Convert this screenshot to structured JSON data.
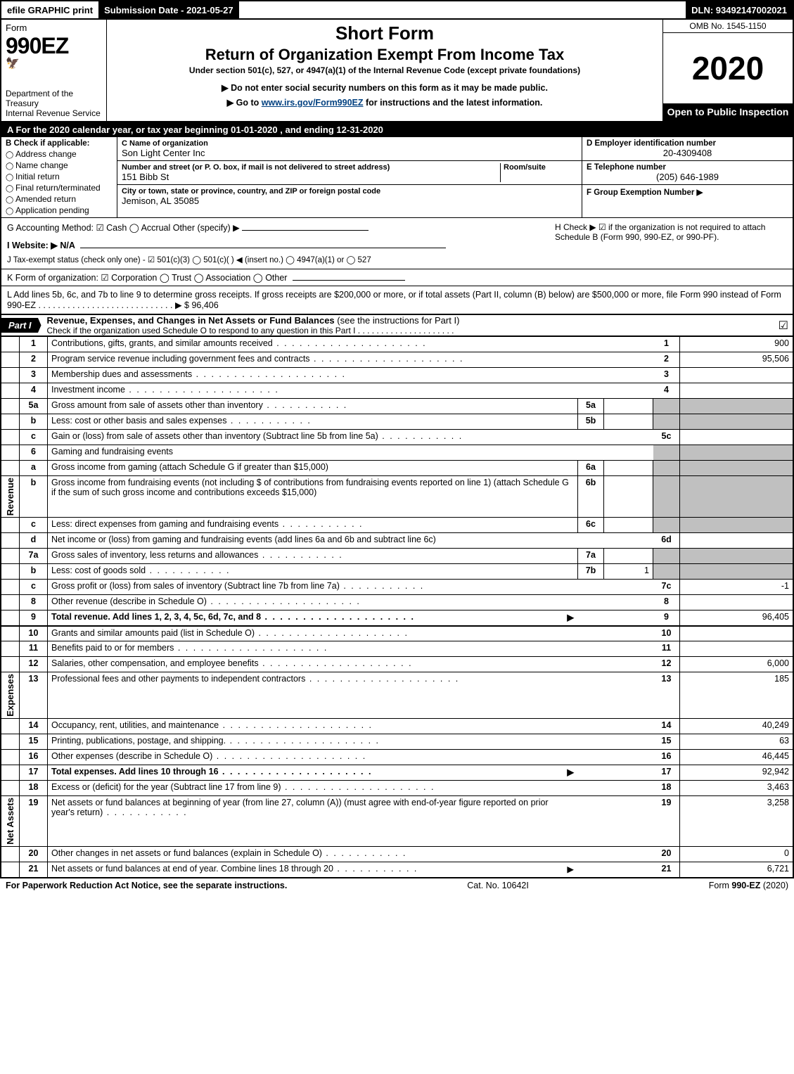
{
  "topbar": {
    "efile": "efile GRAPHIC print",
    "submission": "Submission Date - 2021-05-27",
    "dln": "DLN: 93492147002021"
  },
  "header": {
    "form_word": "Form",
    "form_num": "990EZ",
    "dept": "Department of the Treasury",
    "irs": "Internal Revenue Service",
    "short": "Short Form",
    "return": "Return of Organization Exempt From Income Tax",
    "under": "Under section 501(c), 527, or 4947(a)(1) of the Internal Revenue Code (except private foundations)",
    "donot": "▶ Do not enter social security numbers on this form as it may be made public.",
    "goto_pre": "▶ Go to ",
    "goto_link": "www.irs.gov/Form990EZ",
    "goto_post": " for instructions and the latest information.",
    "omb": "OMB No. 1545-1150",
    "year": "2020",
    "open": "Open to Public Inspection"
  },
  "sectionA": "A For the 2020 calendar year, or tax year beginning 01-01-2020 , and ending 12-31-2020",
  "sectionB": {
    "hdr": "B Check if applicable:",
    "items": [
      "Address change",
      "Name change",
      "Initial return",
      "Final return/terminated",
      "Amended return",
      "Application pending"
    ]
  },
  "sectionC": {
    "name_lbl": "C Name of organization",
    "name_val": "Son Light Center Inc",
    "addr_lbl": "Number and street (or P. O. box, if mail is not delivered to street address)",
    "room_lbl": "Room/suite",
    "addr_val": "151 Bibb St",
    "city_lbl": "City or town, state or province, country, and ZIP or foreign postal code",
    "city_val": "Jemison, AL  35085"
  },
  "sectionD": {
    "lbl": "D Employer identification number",
    "val": "20-4309408"
  },
  "sectionE": {
    "lbl": "E Telephone number",
    "val": "(205) 646-1989"
  },
  "sectionF": {
    "lbl": "F Group Exemption Number   ▶",
    "val": ""
  },
  "sectionG": "G Accounting Method:   ☑ Cash  ◯ Accrual   Other (specify) ▶ ",
  "sectionH": "H  Check ▶  ☑  if the organization is not required to attach Schedule B (Form 990, 990-EZ, or 990-PF).",
  "sectionI": "I Website: ▶ N/A",
  "sectionJ": "J Tax-exempt status (check only one) ‑  ☑ 501(c)(3)  ◯ 501(c)(  ) ◀ (insert no.)  ◯ 4947(a)(1) or  ◯ 527",
  "sectionK": "K Form of organization:   ☑ Corporation   ◯ Trust   ◯ Association   ◯ Other",
  "sectionL": {
    "text": "L Add lines 5b, 6c, and 7b to line 9 to determine gross receipts. If gross receipts are $200,000 or more, or if total assets (Part II, column (B) below) are $500,000 or more, file Form 990 instead of Form 990-EZ  .  .  .  .  .  .  .  .  .  .  .  .  .  .  .  .  .  .  .  .  .  .  .  .  .  .  .  .  ▶ $ ",
    "val": "96,406"
  },
  "part1": {
    "tag": "Part I",
    "title": "Revenue, Expenses, and Changes in Net Assets or Fund Balances ",
    "sub": "(see the instructions for Part I)",
    "check_line": "Check if the organization used Schedule O to respond to any question in this Part I  .  .  .  .  .  .  .  .  .  .  .  .  .  .  .  .  .  .  .  .  ."
  },
  "side_labels": {
    "revenue": "Revenue",
    "expenses": "Expenses",
    "netassets": "Net Assets"
  },
  "rows": [
    {
      "side": "rev",
      "n": "1",
      "d": "Contributions, gifts, grants, and similar amounts received",
      "sn": "",
      "sv": "",
      "rn": "1",
      "rv": "900",
      "dot": "long"
    },
    {
      "side": "rev",
      "n": "2",
      "d": "Program service revenue including government fees and contracts",
      "sn": "",
      "sv": "",
      "rn": "2",
      "rv": "95,506",
      "dot": "long"
    },
    {
      "side": "rev",
      "n": "3",
      "d": "Membership dues and assessments",
      "sn": "",
      "sv": "",
      "rn": "3",
      "rv": "",
      "dot": "long"
    },
    {
      "side": "rev",
      "n": "4",
      "d": "Investment income",
      "sn": "",
      "sv": "",
      "rn": "4",
      "rv": "",
      "dot": "long"
    },
    {
      "side": "rev",
      "n": "5a",
      "d": "Gross amount from sale of assets other than inventory",
      "sn": "5a",
      "sv": "",
      "rn": "",
      "rv": "",
      "gray": true,
      "dot": "short"
    },
    {
      "side": "rev",
      "n": "b",
      "d": "Less: cost or other basis and sales expenses",
      "sn": "5b",
      "sv": "",
      "rn": "",
      "rv": "",
      "gray": true,
      "dot": "short"
    },
    {
      "side": "rev",
      "n": "c",
      "d": "Gain or (loss) from sale of assets other than inventory (Subtract line 5b from line 5a)",
      "sn": "",
      "sv": "",
      "rn": "5c",
      "rv": "",
      "dot": "short"
    },
    {
      "side": "rev",
      "n": "6",
      "d": "Gaming and fundraising events",
      "sn": "",
      "sv": "",
      "rn": "",
      "rv": "",
      "gray": true,
      "nodot": true
    },
    {
      "side": "rev",
      "n": "a",
      "d": "Gross income from gaming (attach Schedule G if greater than $15,000)",
      "sn": "6a",
      "sv": "",
      "rn": "",
      "rv": "",
      "gray": true,
      "nodot": true
    },
    {
      "side": "rev",
      "n": "b",
      "d": "Gross income from fundraising events (not including $              of contributions from fundraising events reported on line 1) (attach Schedule G if the sum of such gross income and contributions exceeds $15,000)",
      "sn": "6b",
      "sv": "",
      "rn": "",
      "rv": "",
      "gray": true,
      "nodot": true,
      "tall": true
    },
    {
      "side": "rev",
      "n": "c",
      "d": "Less: direct expenses from gaming and fundraising events",
      "sn": "6c",
      "sv": "",
      "rn": "",
      "rv": "",
      "gray": true,
      "dot": "short"
    },
    {
      "side": "rev",
      "n": "d",
      "d": "Net income or (loss) from gaming and fundraising events (add lines 6a and 6b and subtract line 6c)",
      "sn": "",
      "sv": "",
      "rn": "6d",
      "rv": "",
      "nodot": true
    },
    {
      "side": "rev",
      "n": "7a",
      "d": "Gross sales of inventory, less returns and allowances",
      "sn": "7a",
      "sv": "",
      "rn": "",
      "rv": "",
      "gray": true,
      "dot": "short"
    },
    {
      "side": "rev",
      "n": "b",
      "d": "Less: cost of goods sold",
      "sn": "7b",
      "sv": "1",
      "rn": "",
      "rv": "",
      "gray": true,
      "dot": "short"
    },
    {
      "side": "rev",
      "n": "c",
      "d": "Gross profit or (loss) from sales of inventory (Subtract line 7b from line 7a)",
      "sn": "",
      "sv": "",
      "rn": "7c",
      "rv": "-1",
      "dot": "short"
    },
    {
      "side": "rev",
      "n": "8",
      "d": "Other revenue (describe in Schedule O)",
      "sn": "",
      "sv": "",
      "rn": "8",
      "rv": "",
      "dot": "long"
    },
    {
      "side": "rev",
      "n": "9",
      "d": "Total revenue. Add lines 1, 2, 3, 4, 5c, 6d, 7c, and 8",
      "sn": "",
      "sv": "",
      "rn": "9",
      "rv": "96,405",
      "arrow": true,
      "bold": true,
      "dot": "long"
    },
    {
      "side": "exp",
      "n": "10",
      "d": "Grants and similar amounts paid (list in Schedule O)",
      "sn": "",
      "sv": "",
      "rn": "10",
      "rv": "",
      "dot": "long",
      "gap": true
    },
    {
      "side": "exp",
      "n": "11",
      "d": "Benefits paid to or for members",
      "sn": "",
      "sv": "",
      "rn": "11",
      "rv": "",
      "dot": "long"
    },
    {
      "side": "exp",
      "n": "12",
      "d": "Salaries, other compensation, and employee benefits",
      "sn": "",
      "sv": "",
      "rn": "12",
      "rv": "6,000",
      "dot": "long"
    },
    {
      "side": "exp",
      "n": "13",
      "d": "Professional fees and other payments to independent contractors",
      "sn": "",
      "sv": "",
      "rn": "13",
      "rv": "185",
      "dot": "long"
    },
    {
      "side": "exp",
      "n": "14",
      "d": "Occupancy, rent, utilities, and maintenance",
      "sn": "",
      "sv": "",
      "rn": "14",
      "rv": "40,249",
      "dot": "long"
    },
    {
      "side": "exp",
      "n": "15",
      "d": "Printing, publications, postage, and shipping.",
      "sn": "",
      "sv": "",
      "rn": "15",
      "rv": "63",
      "dot": "long"
    },
    {
      "side": "exp",
      "n": "16",
      "d": "Other expenses (describe in Schedule O)",
      "sn": "",
      "sv": "",
      "rn": "16",
      "rv": "46,445",
      "dot": "long"
    },
    {
      "side": "exp",
      "n": "17",
      "d": "Total expenses. Add lines 10 through 16",
      "sn": "",
      "sv": "",
      "rn": "17",
      "rv": "92,942",
      "arrow": true,
      "bold": true,
      "dot": "long"
    },
    {
      "side": "na",
      "n": "18",
      "d": "Excess or (deficit) for the year (Subtract line 17 from line 9)",
      "sn": "",
      "sv": "",
      "rn": "18",
      "rv": "3,463",
      "dot": "long"
    },
    {
      "side": "na",
      "n": "19",
      "d": "Net assets or fund balances at beginning of year (from line 27, column (A)) (must agree with end-of-year figure reported on prior year's return)",
      "sn": "",
      "sv": "",
      "rn": "19",
      "rv": "3,258",
      "dot": "short",
      "tall": true,
      "graytop": true
    },
    {
      "side": "na",
      "n": "20",
      "d": "Other changes in net assets or fund balances (explain in Schedule O)",
      "sn": "",
      "sv": "",
      "rn": "20",
      "rv": "0",
      "dot": "short"
    },
    {
      "side": "na",
      "n": "21",
      "d": "Net assets or fund balances at end of year. Combine lines 18 through 20",
      "sn": "",
      "sv": "",
      "rn": "21",
      "rv": "6,721",
      "arrow": true,
      "dot": "short"
    }
  ],
  "footer": {
    "l": "For Paperwork Reduction Act Notice, see the separate instructions.",
    "m": "Cat. No. 10642I",
    "r": "Form 990-EZ (2020)",
    "r_bold": "990-EZ"
  }
}
